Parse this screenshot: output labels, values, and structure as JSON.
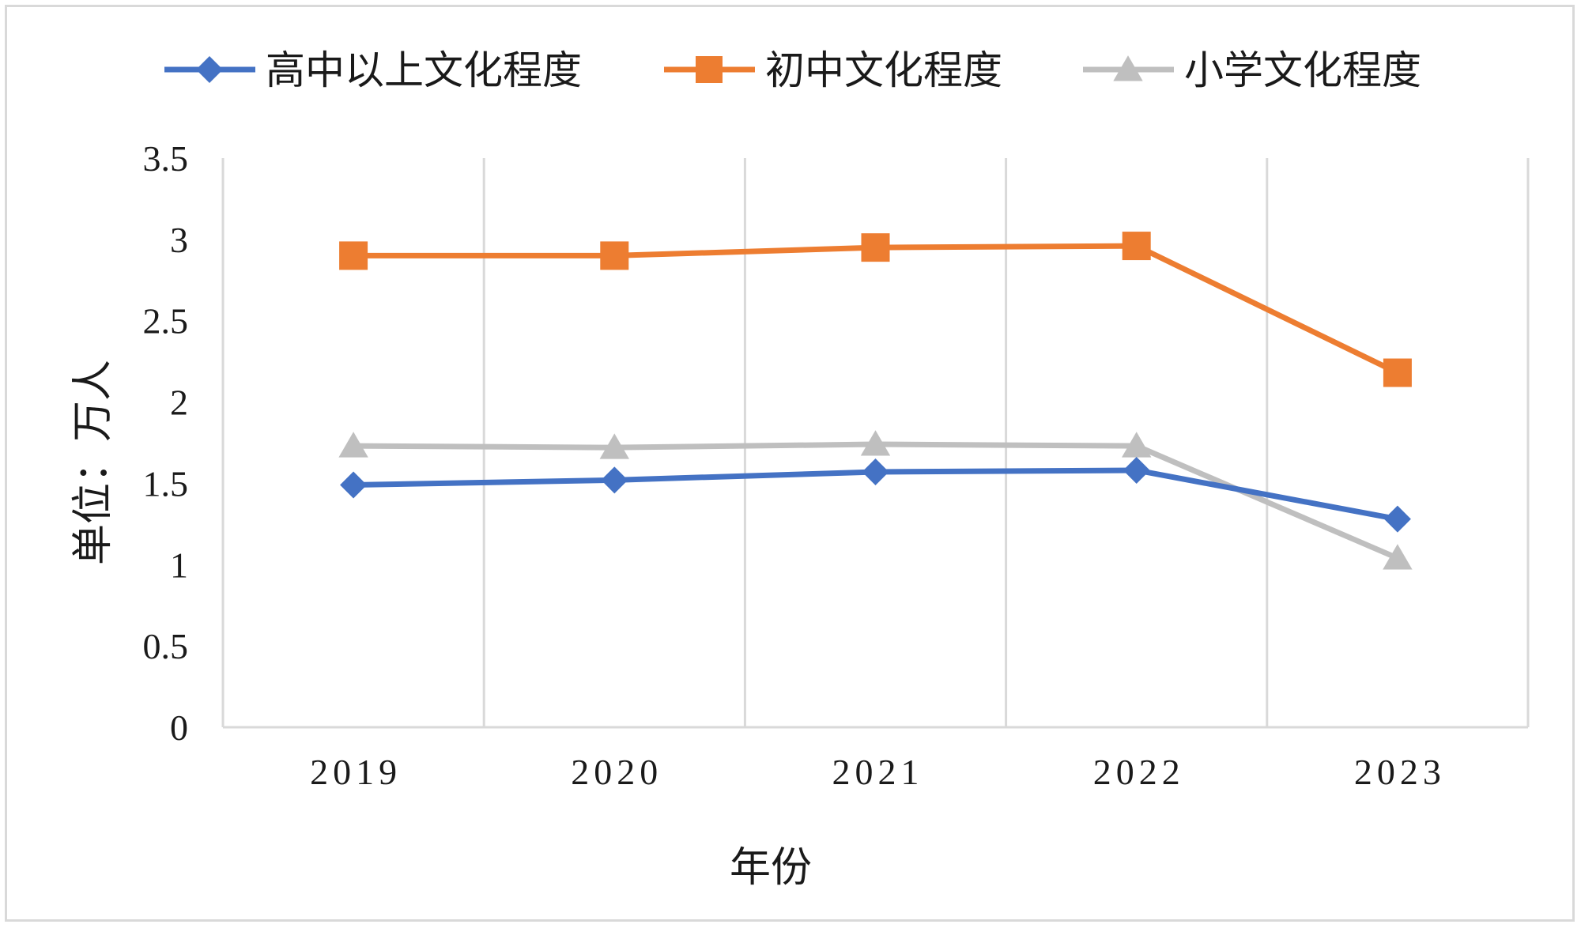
{
  "chart_data": {
    "type": "line",
    "title": "",
    "xlabel": "年份",
    "ylabel": "单位：万人",
    "categories": [
      "2019",
      "2020",
      "2021",
      "2022",
      "2023"
    ],
    "ylim": [
      0,
      3.5
    ],
    "yticks": [
      "0",
      "0.5",
      "1",
      "1.5",
      "2",
      "2.5",
      "3",
      "3.5"
    ],
    "grid": "vertical",
    "legend_position": "top",
    "series": [
      {
        "name": "高中以上文化程度",
        "values": [
          1.49,
          1.52,
          1.57,
          1.58,
          1.28
        ],
        "color": "#4472c4",
        "marker": "diamond"
      },
      {
        "name": "初中文化程度",
        "values": [
          2.9,
          2.9,
          2.95,
          2.96,
          2.18
        ],
        "color": "#ed7d31",
        "marker": "square"
      },
      {
        "name": "小学文化程度",
        "values": [
          1.73,
          1.72,
          1.74,
          1.73,
          1.04
        ],
        "color": "#bfbfbf",
        "marker": "triangle"
      }
    ]
  }
}
